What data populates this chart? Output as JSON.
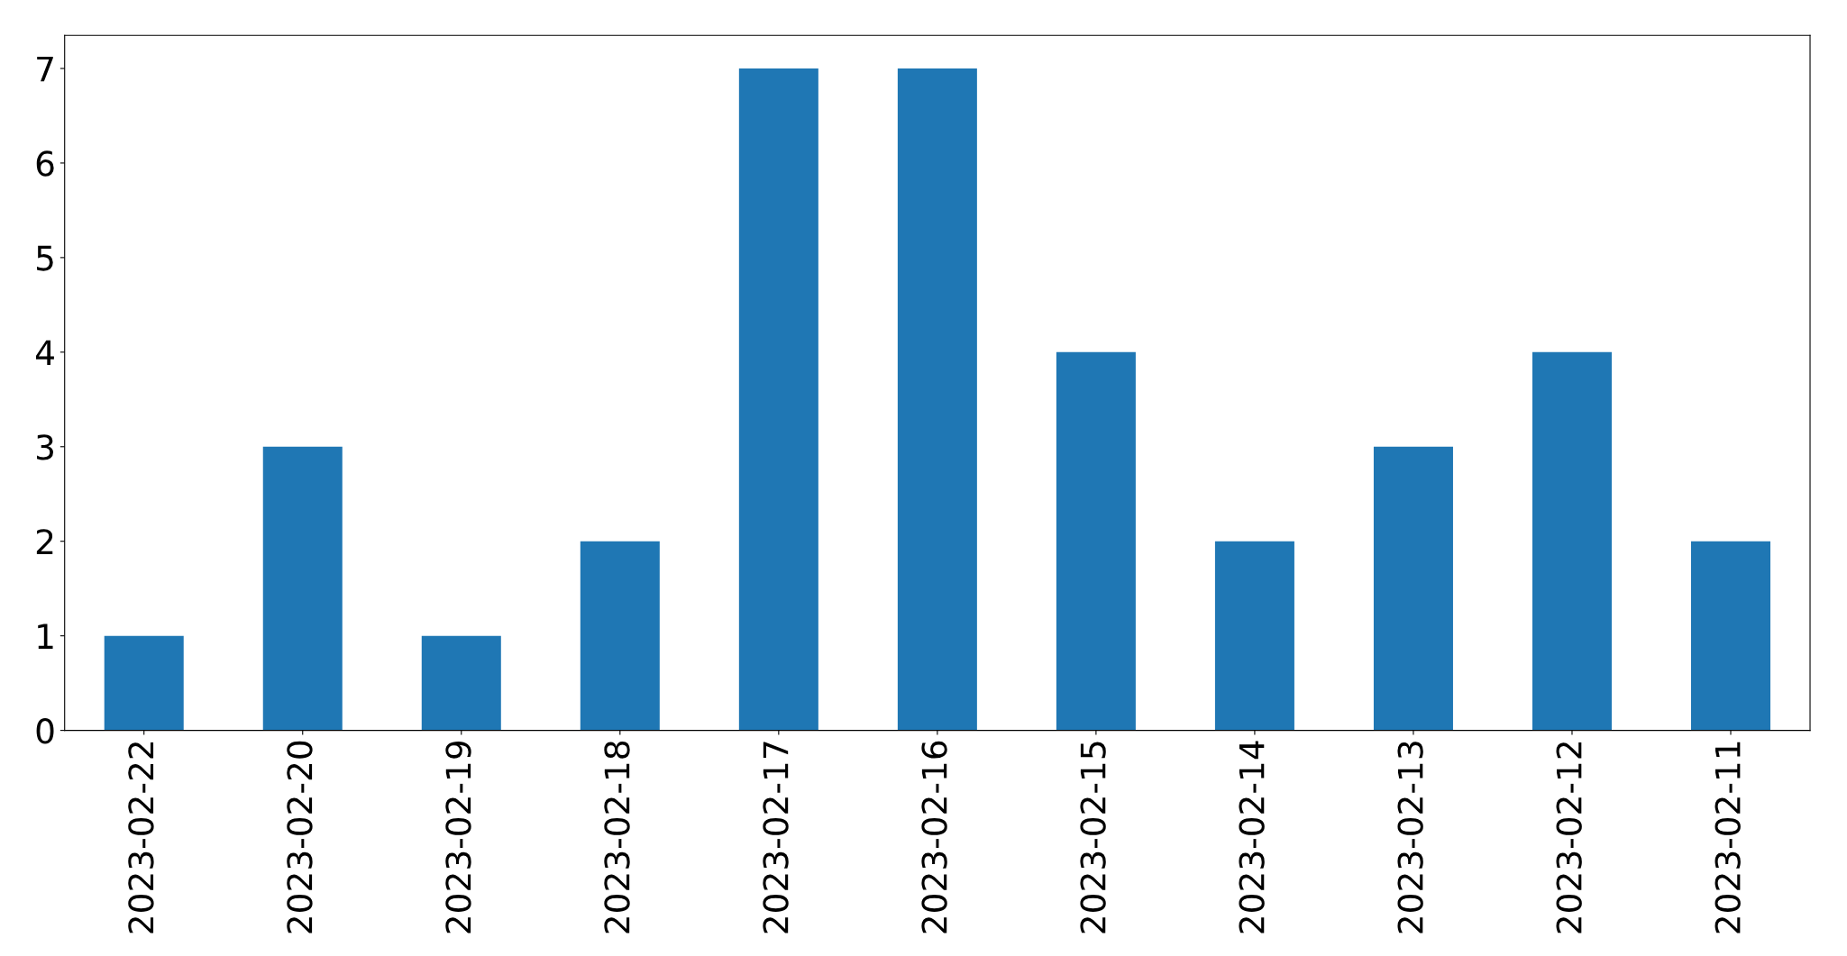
{
  "chart_data": {
    "type": "bar",
    "categories": [
      "2023-02-22",
      "2023-02-20",
      "2023-02-19",
      "2023-02-18",
      "2023-02-17",
      "2023-02-16",
      "2023-02-15",
      "2023-02-14",
      "2023-02-13",
      "2023-02-12",
      "2023-02-11"
    ],
    "values": [
      1,
      3,
      1,
      2,
      7,
      7,
      4,
      2,
      3,
      4,
      2
    ],
    "color": "#1f77b4",
    "ylim": [
      0,
      7.35
    ],
    "yticks": [
      0,
      1,
      2,
      3,
      4,
      5,
      6,
      7
    ],
    "grid": false,
    "legend": false
  }
}
